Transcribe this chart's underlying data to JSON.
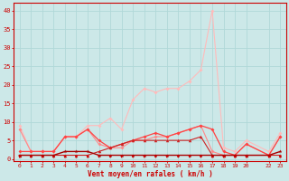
{
  "xlabel": "Vent moyen/en rafales ( km/h )",
  "bg_color": "#cce8e8",
  "grid_color": "#b0d8d8",
  "ylim": [
    0,
    42
  ],
  "yticks": [
    0,
    5,
    10,
    15,
    20,
    25,
    30,
    35,
    40
  ],
  "x_vals": [
    0,
    1,
    2,
    3,
    4,
    5,
    6,
    7,
    8,
    9,
    10,
    11,
    12,
    13,
    14,
    15,
    16,
    17,
    18,
    19,
    20,
    22,
    23
  ],
  "line_light_pink_x": [
    0,
    1,
    2,
    3,
    4,
    5,
    6,
    7,
    8,
    9,
    10,
    11,
    12,
    13,
    14,
    15,
    16,
    17,
    18,
    19,
    20,
    22,
    23
  ],
  "line_light_pink_y": [
    9,
    2,
    2,
    2,
    6,
    6,
    9,
    9,
    11,
    8,
    16,
    19,
    18,
    19,
    19,
    21,
    24,
    40,
    3,
    2,
    5,
    2,
    7
  ],
  "line_pink_x": [
    0,
    1,
    2,
    3,
    4,
    5,
    6,
    7,
    8,
    9,
    10,
    11,
    12,
    13,
    14,
    15,
    16,
    17,
    18,
    19,
    20,
    22,
    23
  ],
  "line_pink_y": [
    8,
    2,
    2,
    2,
    6,
    6,
    8,
    4,
    3,
    3,
    5,
    5,
    6,
    6,
    7,
    8,
    9,
    2,
    1,
    1,
    4,
    1,
    6
  ],
  "line_med_red_x": [
    0,
    1,
    2,
    3,
    4,
    5,
    6,
    7,
    8,
    9,
    10,
    11,
    12,
    13,
    14,
    15,
    16,
    17,
    18,
    19,
    20,
    22,
    23
  ],
  "line_med_red_y": [
    2,
    2,
    2,
    2,
    6,
    6,
    8,
    5,
    3,
    4,
    5,
    6,
    7,
    6,
    7,
    8,
    9,
    8,
    2,
    1,
    4,
    1,
    6
  ],
  "line_tri_x": [
    0,
    1,
    2,
    3,
    4,
    5,
    6,
    7,
    8,
    9,
    10,
    11,
    12,
    13,
    14,
    15,
    16,
    17,
    18,
    19,
    20,
    22,
    23
  ],
  "line_tri_y": [
    1,
    1,
    1,
    1,
    1,
    1,
    1,
    2,
    3,
    4,
    5,
    5,
    5,
    5,
    5,
    5,
    6,
    1,
    1,
    1,
    1,
    1,
    1
  ],
  "line_dark_red_x": [
    0,
    1,
    2,
    3,
    4,
    5,
    6,
    7,
    8,
    9,
    10,
    11,
    12,
    13,
    14,
    15,
    16,
    17,
    18,
    19,
    20,
    22,
    23
  ],
  "line_dark_red_y": [
    1,
    1,
    1,
    1,
    2,
    2,
    2,
    1,
    1,
    1,
    1,
    1,
    1,
    1,
    1,
    1,
    1,
    1,
    1,
    1,
    1,
    1,
    2
  ],
  "col_light_pink": "#ffbbbb",
  "col_pink": "#ff8888",
  "col_med_red": "#ff4444",
  "col_tri": "#cc2222",
  "col_dark_red": "#aa0000",
  "col_axis": "#cc0000",
  "col_arrow": "#cc0000"
}
